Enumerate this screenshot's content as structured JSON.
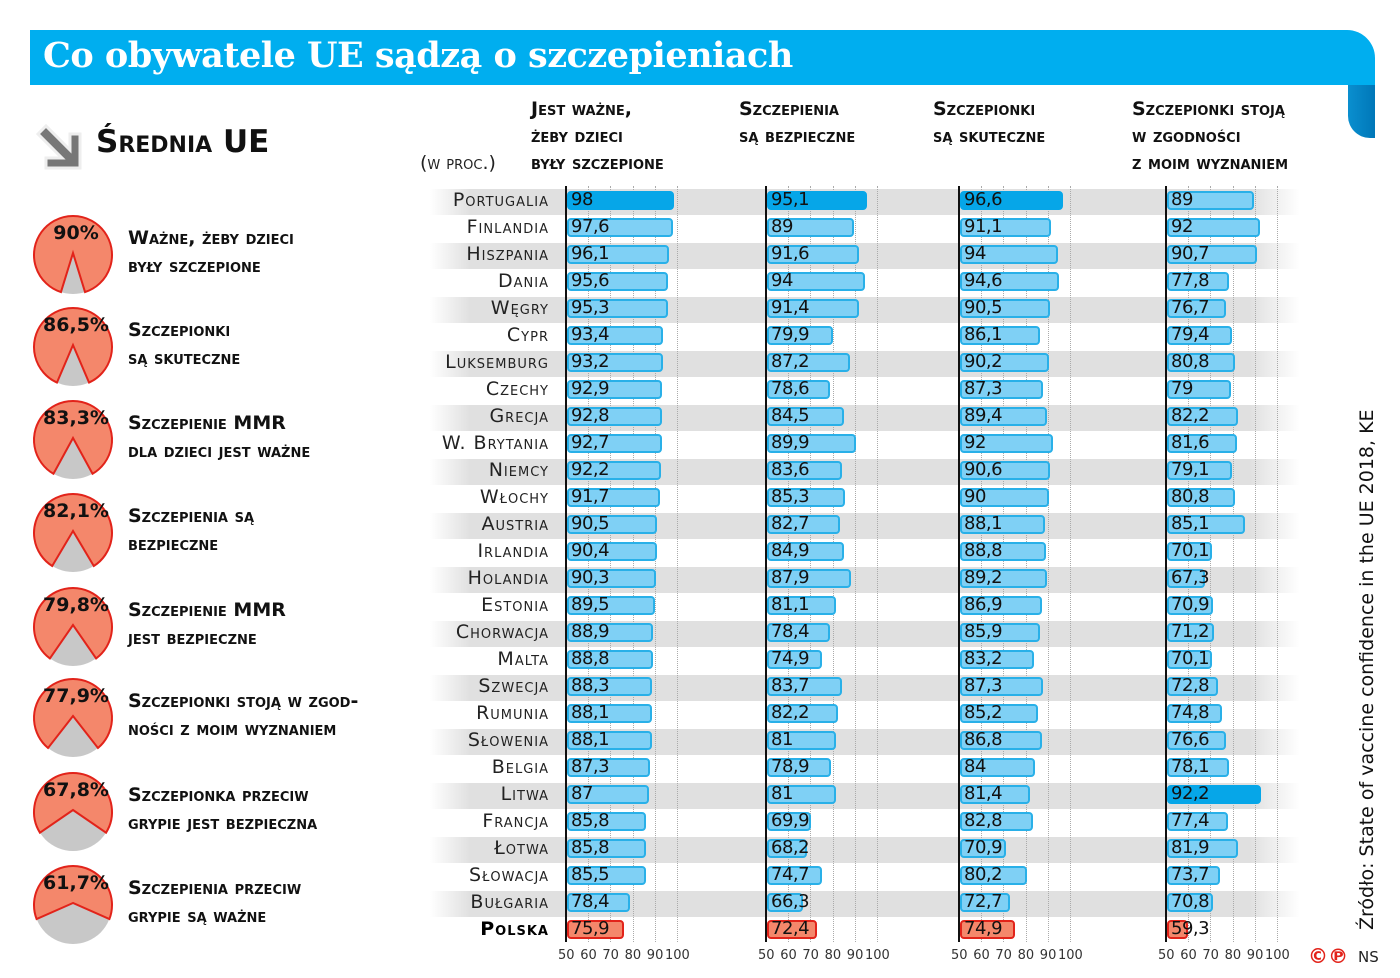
{
  "title": "Co obywatele UE sądzą o szczepieniach",
  "average_heading": "Średnia UE",
  "unit_label": "(w proc.)",
  "colors": {
    "brand_blue": "#00aeef",
    "bar": "#7fd0f5",
    "bar_max": "#06a6e8",
    "poland": "#f4876b",
    "pie": "#f4876b"
  },
  "eu_average": [
    {
      "value": 90,
      "display": "90%",
      "line1": "Ważne, żeby dzieci",
      "line2": "były szczepione"
    },
    {
      "value": 86.5,
      "display": "86,5%",
      "line1": "Szczepionki",
      "line2": "są skuteczne"
    },
    {
      "value": 83.3,
      "display": "83,3%",
      "line1": "Szczepienie MMR",
      "line2": "dla dzieci jest ważne"
    },
    {
      "value": 82.1,
      "display": "82,1%",
      "line1": "Szczepienia są",
      "line2": "bezpieczne"
    },
    {
      "value": 79.8,
      "display": "79,8%",
      "line1": "Szczepienie MMR",
      "line2": "jest bezpieczne"
    },
    {
      "value": 77.9,
      "display": "77,9%",
      "line1": "Szczepionki stoją w zgod-",
      "line2": "ności z moim wyznaniem"
    },
    {
      "value": 67.8,
      "display": "67,8%",
      "line1": "Szczepionka przeciw",
      "line2": "grypie jest bezpieczna"
    },
    {
      "value": 61.7,
      "display": "61,7%",
      "line1": "Szczepienia przeciw",
      "line2": "grypie są ważne"
    }
  ],
  "chart_data": {
    "type": "bar",
    "orientation": "horizontal",
    "xlim": [
      50,
      100
    ],
    "ticks": [
      "50",
      "60",
      "70",
      "80",
      "90",
      "100"
    ],
    "categories": [
      "Portugalia",
      "Finlandia",
      "Hiszpania",
      "Dania",
      "Węgry",
      "Cypr",
      "Luksemburg",
      "Czechy",
      "Grecja",
      "W. Brytania",
      "Niemcy",
      "Włochy",
      "Austria",
      "Irlandia",
      "Holandia",
      "Estonia",
      "Chorwacja",
      "Malta",
      "Szwecja",
      "Rumunia",
      "Słowenia",
      "Belgia",
      "Litwa",
      "Francja",
      "Łotwa",
      "Słowacja",
      "Bułgaria",
      "Polska"
    ],
    "highlight_category": "Polska",
    "series": [
      {
        "name": "Jest ważne, żeby dzieci były szczepione",
        "title_lines": [
          "Jest ważne,",
          "żeby dzieci",
          "były szczepione"
        ],
        "values": [
          98,
          97.6,
          96.1,
          95.6,
          95.3,
          93.4,
          93.2,
          92.9,
          92.8,
          92.7,
          92.2,
          91.7,
          90.5,
          90.4,
          90.3,
          89.5,
          88.9,
          88.8,
          88.3,
          88.1,
          88.1,
          87.3,
          87,
          85.8,
          85.8,
          85.5,
          78.4,
          75.9
        ],
        "labels": [
          "98",
          "97,6",
          "96,1",
          "95,6",
          "95,3",
          "93,4",
          "93,2",
          "92,9",
          "92,8",
          "92,7",
          "92,2",
          "91,7",
          "90,5",
          "90,4",
          "90,3",
          "89,5",
          "88,9",
          "88,8",
          "88,3",
          "88,1",
          "88,1",
          "87,3",
          "87",
          "85,8",
          "85,8",
          "85,5",
          "78,4",
          "75,9"
        ]
      },
      {
        "name": "Szczepienia są bezpieczne",
        "title_lines": [
          "Szczepienia",
          "są bezpieczne",
          ""
        ],
        "values": [
          95.1,
          89,
          91.6,
          94,
          91.4,
          79.9,
          87.2,
          78.6,
          84.5,
          89.9,
          83.6,
          85.3,
          82.7,
          84.9,
          87.9,
          81.1,
          78.4,
          74.9,
          83.7,
          82.2,
          81,
          78.9,
          81,
          69.9,
          68.2,
          74.7,
          66.3,
          72.4
        ],
        "labels": [
          "95,1",
          "89",
          "91,6",
          "94",
          "91,4",
          "79,9",
          "87,2",
          "78,6",
          "84,5",
          "89,9",
          "83,6",
          "85,3",
          "82,7",
          "84,9",
          "87,9",
          "81,1",
          "78,4",
          "74,9",
          "83,7",
          "82,2",
          "81",
          "78,9",
          "81",
          "69,9",
          "68,2",
          "74,7",
          "66,3",
          "72,4"
        ]
      },
      {
        "name": "Szczepionki są skuteczne",
        "title_lines": [
          "Szczepionki",
          "są skuteczne",
          ""
        ],
        "values": [
          96.6,
          91.1,
          94,
          94.6,
          90.5,
          86.1,
          90.2,
          87.3,
          89.4,
          92,
          90.6,
          90,
          88.1,
          88.8,
          89.2,
          86.9,
          85.9,
          83.2,
          87.3,
          85.2,
          86.8,
          84,
          81.4,
          82.8,
          70.9,
          80.2,
          72.7,
          74.9
        ],
        "labels": [
          "96,6",
          "91,1",
          "94",
          "94,6",
          "90,5",
          "86,1",
          "90,2",
          "87,3",
          "89,4",
          "92",
          "90,6",
          "90",
          "88,1",
          "88,8",
          "89,2",
          "86,9",
          "85,9",
          "83,2",
          "87,3",
          "85,2",
          "86,8",
          "84",
          "81,4",
          "82,8",
          "70,9",
          "80,2",
          "72,7",
          "74,9"
        ]
      },
      {
        "name": "Szczepionki stoją w zgodności z moim wyznaniem",
        "title_lines": [
          "Szczepionki stoją",
          "w zgodności",
          "z moim wyznaniem"
        ],
        "values": [
          89,
          92,
          90.7,
          77.8,
          76.7,
          79.4,
          80.8,
          79,
          82.2,
          81.6,
          79.1,
          80.8,
          85.1,
          70.1,
          67.3,
          70.9,
          71.2,
          70.1,
          72.8,
          74.8,
          76.6,
          78.1,
          92.2,
          77.4,
          81.9,
          73.7,
          70.8,
          59.3
        ],
        "labels": [
          "89",
          "92",
          "90,7",
          "77,8",
          "76,7",
          "79,4",
          "80,8",
          "79",
          "82,2",
          "81,6",
          "79,1",
          "80,8",
          "85,1",
          "70,1",
          "67,3",
          "70,9",
          "71,2",
          "70,1",
          "72,8",
          "74,8",
          "76,6",
          "78,1",
          "92,2",
          "77,4",
          "81,9",
          "73,7",
          "70,8",
          "59,3"
        ]
      }
    ]
  },
  "source": "Źródło: State of vaccine confidence in the UE 2018, KE",
  "copyright": "©℗",
  "author": "NS"
}
